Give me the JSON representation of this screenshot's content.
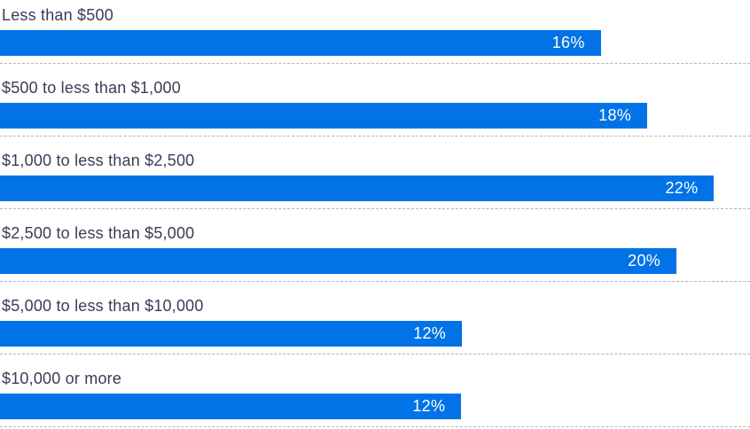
{
  "chart_data": {
    "type": "bar",
    "orientation": "horizontal",
    "title": "",
    "xlabel": "",
    "ylabel": "",
    "categories": [
      "Less than $500",
      "$500 to less than $1,000",
      "$1,000 to less than $2,500",
      "$2,500 to less than $5,000",
      "$5,000 to less than $10,000",
      "$10,000 or more"
    ],
    "values": [
      16,
      18,
      22,
      20,
      12,
      12
    ],
    "value_labels": [
      "16%",
      "18%",
      "22%",
      "20%",
      "12%",
      "12%"
    ],
    "value_label_position": "inside-end",
    "grid": "dashed-row-separators",
    "legend": "none",
    "bar_color": "#0173e6",
    "label_color": "#3b3b58",
    "value_label_color": "#ffffff",
    "separator_color": "#b5b5b5",
    "rows": [
      {
        "label": "Less than $500",
        "value": 16,
        "value_label": "16%",
        "bar_width_pct": 80.1
      },
      {
        "label": "$500 to less than $1,000",
        "value": 18,
        "value_label": "18%",
        "bar_width_pct": 86.3
      },
      {
        "label": "$1,000 to less than $2,500",
        "value": 22,
        "value_label": "22%",
        "bar_width_pct": 95.2
      },
      {
        "label": "$2,500 to less than $5,000",
        "value": 20,
        "value_label": "20%",
        "bar_width_pct": 90.2
      },
      {
        "label": "$5,000 to less than $10,000",
        "value": 12,
        "value_label": "12%",
        "bar_width_pct": 61.6
      },
      {
        "label": "$10,000 or more",
        "value": 12,
        "value_label": "12%",
        "bar_width_pct": 61.5
      }
    ]
  }
}
